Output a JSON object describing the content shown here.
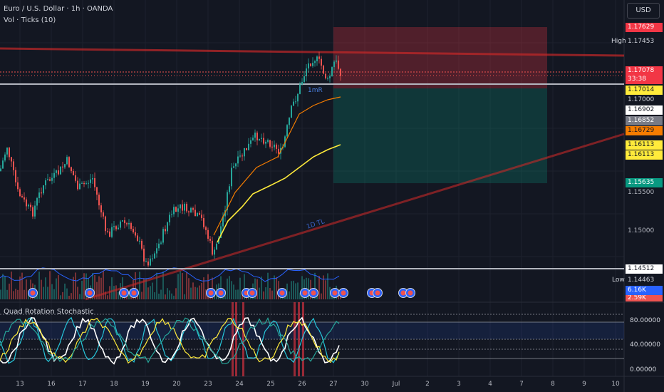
{
  "header": {
    "symbol": "Euro / U.S. Dollar · 1h · OANDA",
    "volume_indicator": "Vol · Ticks (10)",
    "currency_button": "USD"
  },
  "price_axis": {
    "labels": [
      "1.17629",
      "1.17453",
      "1.17078",
      "33:38",
      "1.17014",
      "1.17000",
      "1.16902",
      "1.16852",
      "1.16729",
      "1.16113",
      "1.16113",
      "1.15635",
      "1.15500",
      "1.15000",
      "1.14512",
      "1.14463",
      "6.16K",
      "2.59K"
    ],
    "high_tag": "High",
    "low_tag": "Low"
  },
  "annotations": {
    "rr_label": "1mR",
    "trendline_label": "1D TL"
  },
  "oscillator": {
    "title": "Quad Rotation Stochastic",
    "labels": [
      "80.00000",
      "40.00000",
      "0.00000"
    ]
  },
  "time_axis": {
    "labels": [
      "13",
      "16",
      "17",
      "18",
      "19",
      "20",
      "23",
      "24",
      "25",
      "26",
      "27",
      "30",
      "Jul",
      "2",
      "3",
      "4",
      "7",
      "8",
      "9",
      "10"
    ]
  },
  "colors": {
    "background": "#131722",
    "bull_candle": "#26a69a",
    "bear_candle": "#ef5350",
    "stop_zone": "#f23645",
    "target_zone": "#089981",
    "ema_fast": "#f57c00",
    "ema_slow": "#ffeb3b",
    "trendline": "#c62828",
    "support_line": "#b2b5be"
  }
}
